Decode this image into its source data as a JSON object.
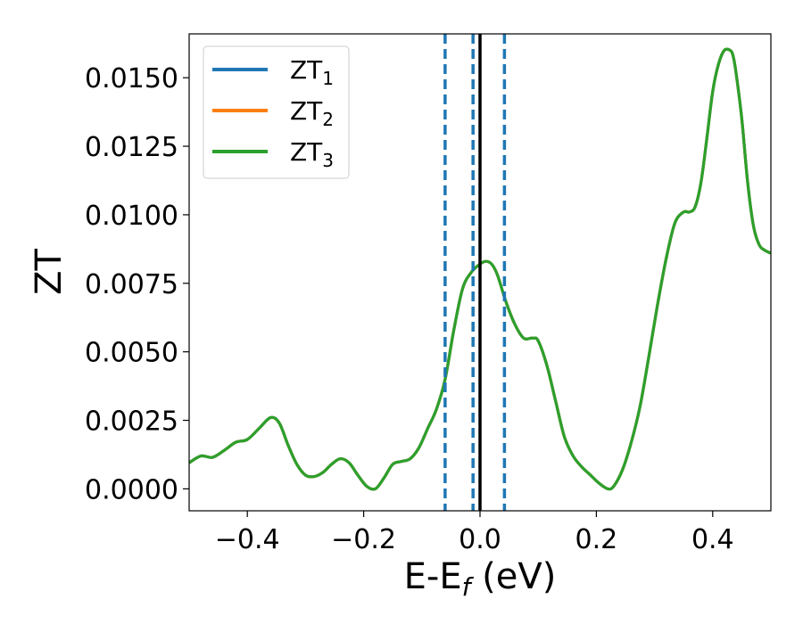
{
  "chart_data": {
    "type": "line",
    "title": "",
    "xlabel": {
      "main": "E-E",
      "sub": "f",
      "unit": " (eV)"
    },
    "ylabel": "ZT",
    "xlim": [
      -0.5,
      0.5
    ],
    "ylim": [
      -0.0008,
      0.0166
    ],
    "xticks": [
      -0.4,
      -0.2,
      0.0,
      0.2,
      0.4
    ],
    "xtick_labels": [
      "−0.4",
      "−0.2",
      "0.0",
      "0.2",
      "0.4"
    ],
    "yticks": [
      0.0,
      0.0025,
      0.005,
      0.0075,
      0.01,
      0.0125,
      0.015
    ],
    "ytick_labels": [
      "0.0000",
      "0.0025",
      "0.0050",
      "0.0075",
      "0.0100",
      "0.0125",
      "0.0150"
    ],
    "grid": false,
    "legend_position": "top-left",
    "vlines": [
      {
        "x": -0.06,
        "style": "dashed",
        "color": "#1f77b4"
      },
      {
        "x": -0.012,
        "style": "dashed",
        "color": "#1f77b4"
      },
      {
        "x": 0.0,
        "style": "solid",
        "color": "#000000"
      },
      {
        "x": 0.042,
        "style": "dashed",
        "color": "#1f77b4"
      }
    ],
    "series": [
      {
        "name": "ZT",
        "sub": "1",
        "color": "#1f77b4"
      },
      {
        "name": "ZT",
        "sub": "2",
        "color": "#ff7f0e"
      },
      {
        "name": "ZT",
        "sub": "3",
        "color": "#2ca02c"
      }
    ],
    "x": [
      -0.5,
      -0.48,
      -0.46,
      -0.44,
      -0.42,
      -0.4,
      -0.38,
      -0.36,
      -0.345,
      -0.33,
      -0.315,
      -0.3,
      -0.285,
      -0.27,
      -0.255,
      -0.24,
      -0.225,
      -0.21,
      -0.195,
      -0.18,
      -0.165,
      -0.15,
      -0.135,
      -0.12,
      -0.105,
      -0.09,
      -0.075,
      -0.06,
      -0.045,
      -0.03,
      -0.015,
      0.0,
      0.01,
      0.02,
      0.03,
      0.045,
      0.06,
      0.075,
      0.09,
      0.1,
      0.115,
      0.13,
      0.145,
      0.16,
      0.175,
      0.19,
      0.205,
      0.22,
      0.23,
      0.245,
      0.26,
      0.275,
      0.29,
      0.305,
      0.32,
      0.335,
      0.35,
      0.36,
      0.37,
      0.38,
      0.39,
      0.4,
      0.41,
      0.42,
      0.43,
      0.435,
      0.44,
      0.45,
      0.46,
      0.47,
      0.48,
      0.49,
      0.5
    ],
    "values": [
      0.00095,
      0.0012,
      0.00115,
      0.0014,
      0.0017,
      0.0018,
      0.0022,
      0.0026,
      0.0024,
      0.0016,
      0.0009,
      0.0005,
      0.00045,
      0.0006,
      0.0009,
      0.0011,
      0.00095,
      0.0005,
      0.0001,
      0.0,
      0.0004,
      0.0009,
      0.001,
      0.0011,
      0.0015,
      0.0022,
      0.0029,
      0.004,
      0.0058,
      0.0073,
      0.0079,
      0.0082,
      0.0083,
      0.0082,
      0.0078,
      0.0068,
      0.006,
      0.0055,
      0.0055,
      0.0054,
      0.0045,
      0.0032,
      0.0019,
      0.0012,
      0.0008,
      0.0005,
      0.0002,
      0.0,
      0.0001,
      0.0007,
      0.0017,
      0.003,
      0.0048,
      0.0067,
      0.0084,
      0.0097,
      0.0101,
      0.0101,
      0.0103,
      0.0112,
      0.0128,
      0.0145,
      0.0155,
      0.016,
      0.016,
      0.0158,
      0.0152,
      0.0135,
      0.0112,
      0.0096,
      0.0089,
      0.0087,
      0.0086
    ]
  }
}
